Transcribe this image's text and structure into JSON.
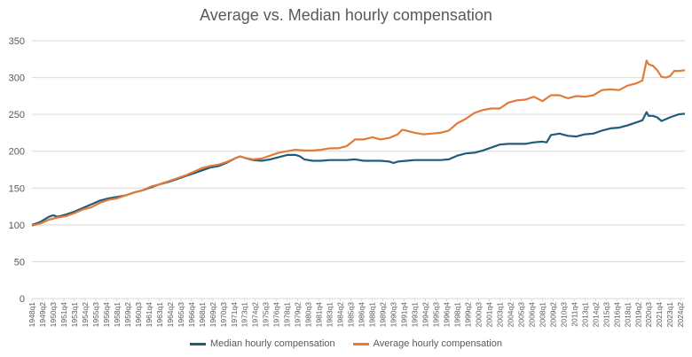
{
  "chart_data": {
    "type": "line",
    "title": "Average vs. Median hourly compensation",
    "xlabel": "",
    "ylabel": "",
    "ylim": [
      0,
      350
    ],
    "yticks": [
      0,
      50,
      100,
      150,
      200,
      250,
      300,
      350
    ],
    "grid": true,
    "legend_position": "bottom",
    "x_start": "1948q1",
    "x_end": "2024q4",
    "x_tick_labels": [
      "1948q1",
      "1949q2",
      "1950q3",
      "1951q4",
      "1953q1",
      "1954q2",
      "1955q3",
      "1956q4",
      "1958q1",
      "1959q2",
      "1960q3",
      "1961q4",
      "1963q1",
      "1964q2",
      "1965q3",
      "1966q4",
      "1968q1",
      "1969q2",
      "1970q3",
      "1971q4",
      "1973q1",
      "1974q2",
      "1975q3",
      "1976q4",
      "1978q1",
      "1979q2",
      "1980q3",
      "1981q4",
      "1983q1",
      "1984q2",
      "1985q3",
      "1986q4",
      "1988q1",
      "1989q2",
      "1990q3",
      "1991q4",
      "1993q1",
      "1994q2",
      "1995q3",
      "1996q4",
      "1998q1",
      "1999q2",
      "2000q3",
      "2001q4",
      "2003q1",
      "2004q2",
      "2005q3",
      "2006q4",
      "2008q1",
      "2009q2",
      "2010q3",
      "2011q4",
      "2013q1",
      "2014q2",
      "2015q3",
      "2016q4",
      "2018q1",
      "2019q2",
      "2020q3",
      "2021q4",
      "2023q1",
      "2024q2"
    ],
    "series": [
      {
        "name": "Median hourly compensation",
        "color": "#1f5c7a",
        "points": [
          [
            "1948q1",
            100
          ],
          [
            "1949q1",
            104
          ],
          [
            "1950q1",
            111
          ],
          [
            "1950q3",
            113
          ],
          [
            "1951q1",
            111
          ],
          [
            "1952q1",
            114
          ],
          [
            "1953q1",
            118
          ],
          [
            "1954q1",
            123
          ],
          [
            "1955q1",
            128
          ],
          [
            "1956q1",
            133
          ],
          [
            "1957q1",
            136
          ],
          [
            "1958q1",
            138
          ],
          [
            "1959q1",
            140
          ],
          [
            "1960q1",
            144
          ],
          [
            "1961q1",
            147
          ],
          [
            "1962q1",
            151
          ],
          [
            "1963q1",
            155
          ],
          [
            "1964q1",
            158
          ],
          [
            "1965q1",
            162
          ],
          [
            "1966q1",
            166
          ],
          [
            "1967q1",
            170
          ],
          [
            "1968q1",
            174
          ],
          [
            "1969q1",
            178
          ],
          [
            "1970q1",
            180
          ],
          [
            "1971q1",
            185
          ],
          [
            "1972q1",
            191
          ],
          [
            "1972q3",
            193
          ],
          [
            "1973q1",
            191
          ],
          [
            "1974q1",
            188
          ],
          [
            "1975q1",
            187
          ],
          [
            "1976q1",
            189
          ],
          [
            "1977q1",
            192
          ],
          [
            "1978q1",
            195
          ],
          [
            "1979q1",
            195
          ],
          [
            "1979q3",
            193
          ],
          [
            "1980q1",
            189
          ],
          [
            "1981q1",
            187
          ],
          [
            "1982q1",
            187
          ],
          [
            "1983q1",
            188
          ],
          [
            "1984q1",
            188
          ],
          [
            "1985q1",
            188
          ],
          [
            "1986q1",
            189
          ],
          [
            "1987q1",
            187
          ],
          [
            "1988q1",
            187
          ],
          [
            "1989q1",
            187
          ],
          [
            "1990q1",
            186
          ],
          [
            "1990q3",
            184
          ],
          [
            "1991q1",
            186
          ],
          [
            "1992q1",
            187
          ],
          [
            "1993q1",
            188
          ],
          [
            "1994q1",
            188
          ],
          [
            "1995q1",
            188
          ],
          [
            "1996q1",
            188
          ],
          [
            "1997q1",
            189
          ],
          [
            "1998q1",
            194
          ],
          [
            "1999q1",
            197
          ],
          [
            "2000q1",
            198
          ],
          [
            "2001q1",
            201
          ],
          [
            "2002q1",
            205
          ],
          [
            "2003q1",
            209
          ],
          [
            "2004q1",
            210
          ],
          [
            "2005q1",
            210
          ],
          [
            "2006q1",
            210
          ],
          [
            "2007q1",
            212
          ],
          [
            "2008q1",
            213
          ],
          [
            "2008q3",
            212
          ],
          [
            "2009q1",
            222
          ],
          [
            "2010q1",
            224
          ],
          [
            "2011q1",
            221
          ],
          [
            "2012q1",
            220
          ],
          [
            "2013q1",
            223
          ],
          [
            "2014q1",
            224
          ],
          [
            "2015q1",
            228
          ],
          [
            "2016q1",
            231
          ],
          [
            "2017q1",
            232
          ],
          [
            "2018q1",
            235
          ],
          [
            "2019q1",
            239
          ],
          [
            "2019q4",
            242
          ],
          [
            "2020q2",
            253
          ],
          [
            "2020q3",
            248
          ],
          [
            "2021q1",
            248
          ],
          [
            "2021q3",
            246
          ],
          [
            "2022q1",
            241
          ],
          [
            "2023q1",
            246
          ],
          [
            "2024q1",
            250
          ],
          [
            "2024q4",
            251
          ]
        ]
      },
      {
        "name": "Average hourly compensation",
        "color": "#e07b39",
        "points": [
          [
            "1948q1",
            99
          ],
          [
            "1949q1",
            102
          ],
          [
            "1950q1",
            107
          ],
          [
            "1951q1",
            110
          ],
          [
            "1952q1",
            112
          ],
          [
            "1953q1",
            116
          ],
          [
            "1954q1",
            121
          ],
          [
            "1955q1",
            124
          ],
          [
            "1956q1",
            130
          ],
          [
            "1957q1",
            134
          ],
          [
            "1958q1",
            136
          ],
          [
            "1959q1",
            140
          ],
          [
            "1960q1",
            144
          ],
          [
            "1961q1",
            147
          ],
          [
            "1962q1",
            152
          ],
          [
            "1963q1",
            155
          ],
          [
            "1964q1",
            159
          ],
          [
            "1965q1",
            163
          ],
          [
            "1966q1",
            167
          ],
          [
            "1967q1",
            172
          ],
          [
            "1968q1",
            177
          ],
          [
            "1969q1",
            180
          ],
          [
            "1970q1",
            182
          ],
          [
            "1971q1",
            186
          ],
          [
            "1972q1",
            191
          ],
          [
            "1972q3",
            193
          ],
          [
            "1973q1",
            191
          ],
          [
            "1974q1",
            189
          ],
          [
            "1975q1",
            190
          ],
          [
            "1976q1",
            194
          ],
          [
            "1977q1",
            198
          ],
          [
            "1978q1",
            200
          ],
          [
            "1979q1",
            202
          ],
          [
            "1980q1",
            201
          ],
          [
            "1981q1",
            201
          ],
          [
            "1982q1",
            202
          ],
          [
            "1983q1",
            204
          ],
          [
            "1984q1",
            204
          ],
          [
            "1985q1",
            207
          ],
          [
            "1986q1",
            216
          ],
          [
            "1987q1",
            216
          ],
          [
            "1988q1",
            219
          ],
          [
            "1989q1",
            216
          ],
          [
            "1990q1",
            218
          ],
          [
            "1991q1",
            223
          ],
          [
            "1991q3",
            229
          ],
          [
            "1992q1",
            228
          ],
          [
            "1993q1",
            225
          ],
          [
            "1994q1",
            223
          ],
          [
            "1995q1",
            224
          ],
          [
            "1996q1",
            225
          ],
          [
            "1997q1",
            228
          ],
          [
            "1998q1",
            238
          ],
          [
            "1999q1",
            244
          ],
          [
            "2000q1",
            252
          ],
          [
            "2001q1",
            256
          ],
          [
            "2002q1",
            258
          ],
          [
            "2003q1",
            258
          ],
          [
            "2004q1",
            266
          ],
          [
            "2005q1",
            269
          ],
          [
            "2006q1",
            270
          ],
          [
            "2007q1",
            274
          ],
          [
            "2008q1",
            268
          ],
          [
            "2009q1",
            276
          ],
          [
            "2010q1",
            276
          ],
          [
            "2011q1",
            272
          ],
          [
            "2012q1",
            275
          ],
          [
            "2013q1",
            274
          ],
          [
            "2014q1",
            276
          ],
          [
            "2015q1",
            283
          ],
          [
            "2016q1",
            284
          ],
          [
            "2017q1",
            283
          ],
          [
            "2018q1",
            289
          ],
          [
            "2019q1",
            292
          ],
          [
            "2019q4",
            296
          ],
          [
            "2020q2",
            323
          ],
          [
            "2020q3",
            318
          ],
          [
            "2021q1",
            316
          ],
          [
            "2021q3",
            310
          ],
          [
            "2022q1",
            301
          ],
          [
            "2022q3",
            300
          ],
          [
            "2023q1",
            302
          ],
          [
            "2023q3",
            309
          ],
          [
            "2024q1",
            309
          ],
          [
            "2024q4",
            310
          ]
        ]
      }
    ]
  }
}
